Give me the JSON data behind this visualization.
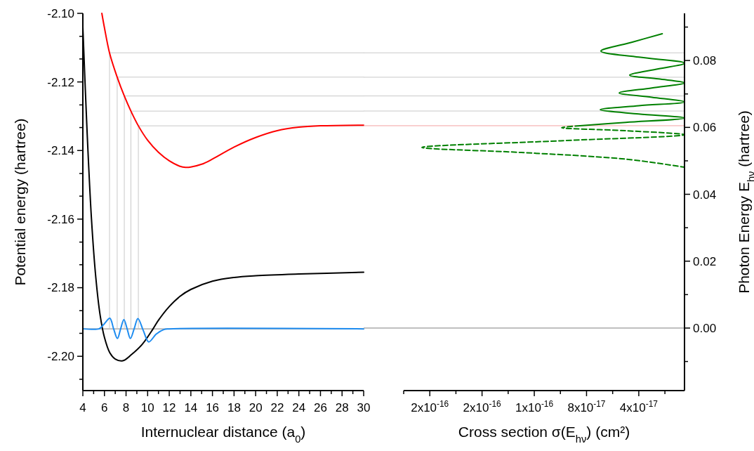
{
  "chart_data": [
    {
      "type": "line",
      "xlabel": "Internuclear distance (a$_{0}$)",
      "ylabel": "Potential energy (hartree)",
      "xlim": [
        4,
        30
      ],
      "ylim": [
        -2.21,
        -2.1
      ],
      "xticks": [
        4,
        {
          "value": 5,
          "label": null
        },
        6,
        {
          "value": 7,
          "label": null
        },
        8,
        {
          "value": 9,
          "label": null
        },
        10,
        {
          "value": 11,
          "label": null
        },
        12,
        {
          "value": 13,
          "label": null
        },
        14,
        {
          "value": 15,
          "label": null
        },
        16,
        {
          "value": 17,
          "label": null
        },
        18,
        {
          "value": 19,
          "label": null
        },
        20,
        {
          "value": 21,
          "label": null
        },
        22,
        {
          "value": 23,
          "label": null
        },
        24,
        {
          "value": 25,
          "label": null
        },
        26,
        {
          "value": 27,
          "label": null
        },
        28,
        {
          "value": 29,
          "label": null
        },
        30
      ],
      "yticks": [
        {
          "value": -2.1,
          "label": "-2.10"
        },
        {
          "value": -2.1067,
          "label": null
        },
        {
          "value": -2.1133,
          "label": null
        },
        {
          "value": -2.12,
          "label": "-2.12"
        },
        {
          "value": -2.1267,
          "label": null
        },
        {
          "value": -2.1333,
          "label": null
        },
        {
          "value": -2.14,
          "label": "-2.14"
        },
        {
          "value": -2.1467,
          "label": null
        },
        {
          "value": -2.1533,
          "label": null
        },
        {
          "value": -2.16,
          "label": "-2.16"
        },
        {
          "value": -2.1667,
          "label": null
        },
        {
          "value": -2.1733,
          "label": null
        },
        {
          "value": -2.18,
          "label": "-2.18"
        },
        {
          "value": -2.1867,
          "label": null
        },
        {
          "value": -2.1933,
          "label": null
        },
        {
          "value": -2.2,
          "label": "-2.20"
        },
        {
          "value": -2.2067,
          "label": null
        }
      ],
      "ref_lines": [
        {
          "axis": "y",
          "value": -2.192,
          "color": "#808080"
        }
      ],
      "series": [
        {
          "type": "line",
          "color": "#c8c8c8",
          "x": [
            6.47,
            6.47,
            30
          ],
          "values": [
            -2.192,
            -2.1115,
            -2.1115
          ]
        },
        {
          "type": "line",
          "color": "#c8c8c8",
          "x": [
            7.18,
            7.18,
            30
          ],
          "values": [
            -2.192,
            -2.1186,
            -2.1186
          ]
        },
        {
          "type": "line",
          "color": "#c8c8c8",
          "x": [
            7.84,
            7.84,
            30
          ],
          "values": [
            -2.192,
            -2.1241,
            -2.1241
          ]
        },
        {
          "type": "line",
          "color": "#c8c8c8",
          "x": [
            8.45,
            8.45,
            30
          ],
          "values": [
            -2.192,
            -2.1285,
            -2.1285
          ]
        },
        {
          "type": "line",
          "color": "#c8c8c8",
          "x": [
            9.14,
            9.14,
            30
          ],
          "values": [
            -2.192,
            -2.1328,
            -2.1328
          ]
        },
        {
          "color": "#ff0000",
          "x": [
            5.76,
            6.0,
            6.47,
            7.18,
            7.84,
            8.45,
            9.14,
            10,
            11,
            12,
            13,
            13.5,
            14,
            15,
            16,
            18,
            20,
            22,
            24,
            26,
            30
          ],
          "values": [
            -2.1,
            -2.1042,
            -2.1115,
            -2.1186,
            -2.1241,
            -2.1285,
            -2.1328,
            -2.137,
            -2.1405,
            -2.143,
            -2.1446,
            -2.1449,
            -2.1448,
            -2.144,
            -2.1425,
            -2.139,
            -2.1362,
            -2.1342,
            -2.1332,
            -2.1328,
            -2.1326
          ]
        },
        {
          "color": "#000000",
          "x": [
            4,
            4.4,
            4.8,
            5.2,
            5.6,
            6,
            6.5,
            7,
            7.7,
            8.5,
            9.5,
            10.5,
            11,
            12,
            13,
            14,
            16,
            18,
            20,
            24,
            30
          ],
          "values": [
            -2.104,
            -2.135,
            -2.16,
            -2.177,
            -2.188,
            -2.1945,
            -2.199,
            -2.2008,
            -2.2013,
            -2.1995,
            -2.1965,
            -2.192,
            -2.1895,
            -2.1855,
            -2.1825,
            -2.1805,
            -2.1781,
            -2.177,
            -2.1765,
            -2.176,
            -2.1755
          ]
        },
        {
          "color": "#1e8cf0",
          "x": [
            4,
            5.5,
            5.7,
            6,
            6.5,
            6.85,
            7.2,
            7.5,
            7.8,
            8.1,
            8.4,
            8.75,
            9.1,
            9.6,
            10.1,
            10.8,
            11.5,
            12,
            30
          ],
          "values": [
            -2.192,
            -2.192,
            -2.1915,
            -2.1905,
            -2.1889,
            -2.192,
            -2.1948,
            -2.192,
            -2.1893,
            -2.192,
            -2.1948,
            -2.192,
            -2.189,
            -2.1925,
            -2.1958,
            -2.1935,
            -2.1922,
            -2.192,
            -2.192
          ]
        }
      ]
    },
    {
      "type": "line",
      "xlabel": "Cross section σ(E$_{hν}$) (cm²)",
      "y2label": "Photon Energy E$_{hν}$ (hartree)",
      "xlim": [
        2.2e-16,
        5e-18
      ],
      "y2lim": [
        -0.0187,
        0.0941
      ],
      "xticks": [
        {
          "value": 2.2e-16,
          "label": null
        },
        {
          "value": 2e-16,
          "label": "2x10$^{-16}$"
        },
        {
          "value": 1.8e-16,
          "label": null
        },
        {
          "value": 1.6e-16,
          "label": "2x10$^{-16}$"
        },
        {
          "value": 1.4e-16,
          "label": null
        },
        {
          "value": 1.2e-16,
          "label": "1x10$^{-16}$"
        },
        {
          "value": 1e-16,
          "label": null
        },
        {
          "value": 8e-17,
          "label": "8x10$^{-17}$"
        },
        {
          "value": 6e-17,
          "label": null
        },
        {
          "value": 4e-17,
          "label": "4x10$^{-17}$"
        },
        {
          "value": 2e-17,
          "label": null
        }
      ],
      "y2ticks": [
        {
          "value": -0.01,
          "label": null
        },
        {
          "value": 0,
          "label": "0.00"
        },
        {
          "value": 0.01,
          "label": null
        },
        {
          "value": 0.02,
          "label": "0.02"
        },
        {
          "value": 0.03,
          "label": null
        },
        {
          "value": 0.04,
          "label": "0.04"
        },
        {
          "value": 0.05,
          "label": null
        },
        {
          "value": 0.06,
          "label": "0.06"
        },
        {
          "value": 0.07,
          "label": null
        },
        {
          "value": 0.08,
          "label": "0.08"
        },
        {
          "value": 0.09,
          "label": null
        }
      ],
      "ref_lines": [
        {
          "axis": "y2",
          "value": 0,
          "color": "#808080"
        },
        {
          "axis": "y2",
          "value": 0.0823,
          "color": "#c8c8c8"
        },
        {
          "axis": "y2",
          "value": 0.075,
          "color": "#c8c8c8"
        },
        {
          "axis": "y2",
          "value": 0.0694,
          "color": "#c8c8c8"
        },
        {
          "axis": "y2",
          "value": 0.0649,
          "color": "#c8c8c8"
        },
        {
          "axis": "y2",
          "value": 0.0605,
          "color": "#f4a0a0"
        }
      ],
      "series": [
        {
          "color": "#008000",
          "axis": "y2",
          "line_style": "solid",
          "x": [
            2.2e-17,
            4.5e-17,
            6.9e-17,
            4e-17,
            5e-18,
            2.5e-17,
            4.7e-17,
            2.5e-17,
            5e-18,
            3e-17,
            5.5e-17,
            3e-17,
            5e-18,
            4e-17,
            6.95e-17,
            4e-17,
            5e-18,
            5e-17,
            8.5e-17
          ],
          "values": [
            0.088,
            0.0855,
            0.0828,
            0.081,
            0.0792,
            0.0775,
            0.0756,
            0.0745,
            0.0733,
            0.0718,
            0.0703,
            0.069,
            0.0676,
            0.0665,
            0.0653,
            0.064,
            0.0628,
            0.0615,
            0.0605
          ]
        },
        {
          "color": "#008000",
          "axis": "y2",
          "line_style": "dashed",
          "x": [
            8.5e-17,
            9.9e-17,
            5e-17,
            5e-18,
            1e-16,
            2.06e-16,
            1.3e-16,
            5e-17,
            5e-18
          ],
          "values": [
            0.0605,
            0.0599,
            0.059,
            0.0578,
            0.056,
            0.054,
            0.0525,
            0.0505,
            0.0481
          ]
        }
      ]
    }
  ]
}
